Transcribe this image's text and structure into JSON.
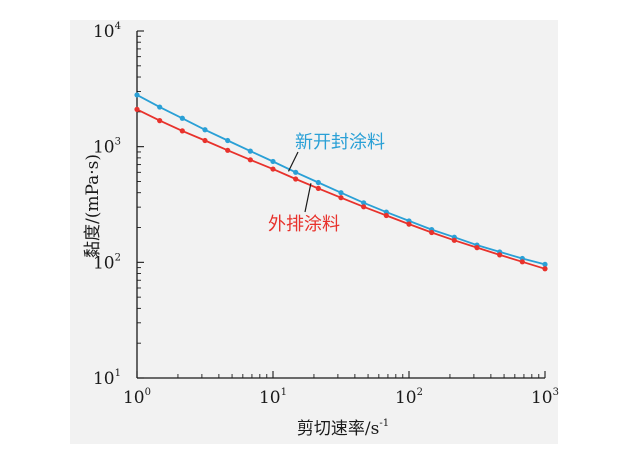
{
  "chart_data": {
    "type": "line",
    "x_scale": "log",
    "y_scale": "log",
    "xlim": [
      1,
      1000
    ],
    "ylim": [
      10,
      10000
    ],
    "xlabel_text": "剪切速率/s",
    "xlabel_sup": "-1",
    "ylabel": "黏度/(mPa·s)",
    "x_ticks": [
      {
        "base": "10",
        "exp": "0",
        "value": 1
      },
      {
        "base": "10",
        "exp": "1",
        "value": 10
      },
      {
        "base": "10",
        "exp": "2",
        "value": 100
      },
      {
        "base": "10",
        "exp": "3",
        "value": 1000
      }
    ],
    "y_ticks": [
      {
        "base": "10",
        "exp": "1",
        "value": 10
      },
      {
        "base": "10",
        "exp": "2",
        "value": 100
      },
      {
        "base": "10",
        "exp": "3",
        "value": 1000
      },
      {
        "base": "10",
        "exp": "4",
        "value": 10000
      }
    ],
    "x": [
      1,
      1.468,
      2.154,
      3.162,
      4.642,
      6.813,
      10,
      14.68,
      21.54,
      31.62,
      46.42,
      68.13,
      100,
      146.8,
      215.4,
      316.2,
      464.2,
      681.3,
      1000
    ],
    "series": [
      {
        "name": "新开封涂料",
        "color": "#2aa0d6",
        "values": [
          2800,
          2200,
          1760,
          1400,
          1130,
          915,
          745,
          600,
          490,
          400,
          327,
          272,
          228,
          192,
          165,
          141,
          123,
          108,
          96
        ]
      },
      {
        "name": "外排涂料",
        "color": "#e8322c",
        "values": [
          2100,
          1680,
          1370,
          1130,
          930,
          770,
          640,
          525,
          436,
          362,
          302,
          254,
          214,
          181,
          155,
          134,
          116,
          101,
          88
        ]
      }
    ],
    "annotations": [
      {
        "text": "新开封涂料",
        "color": "#2aa0d6",
        "series": 0
      },
      {
        "text": "外排涂料",
        "color": "#e8322c",
        "series": 1
      }
    ],
    "grid": false
  }
}
